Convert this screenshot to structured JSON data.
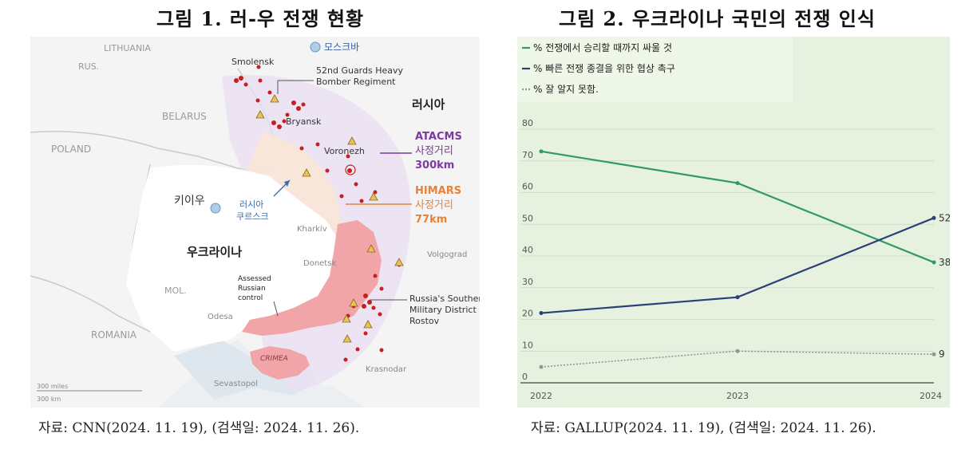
{
  "figure1": {
    "title": "그림 1. 러-우 전쟁 현황",
    "caption": "자료: CNN(2024. 11. 19), (검색일: 2024. 11. 26).",
    "map": {
      "moscow": "모스크바",
      "countries": {
        "lithuania": "LITHUANIA",
        "rus": "RUS.",
        "belarus": "BELARUS",
        "poland": "POLAND",
        "mol": "MOL.",
        "romania": "ROMANIA"
      },
      "russia": "러시아",
      "ukraine": "우크라이나",
      "kyiv": "키이우",
      "kursk": [
        "러시아",
        "쿠르스크"
      ],
      "cities": {
        "smolensk": "Smolensk",
        "bryansk": "Bryansk",
        "voronezh": "Voronezh",
        "kharkiv": "Kharkiv",
        "donetsk": "Donetsk",
        "volgograd": "Volgograd",
        "odesa": "Odesa",
        "sevastopol": "Sevastopol",
        "krasnodar": "Krasnodar",
        "crimea": "CRIMEA"
      },
      "bomber": [
        "52nd Guards Heavy",
        "Bomber Regiment"
      ],
      "assessed": [
        "Assessed",
        "Russian",
        "control"
      ],
      "hq": [
        "Russia's Southern",
        "Military District HQ,",
        "Rostov"
      ],
      "atacms": [
        "ATACMS",
        "사정거리",
        "300km"
      ],
      "himars": [
        "HIMARS",
        "사정거리",
        "77km"
      ],
      "scale": [
        "300 miles",
        "300 km"
      ],
      "colors": {
        "atacms": "#7b3aa0",
        "himars": "#e8813a",
        "control": "#f2a5a8",
        "target": "#c81e1e"
      }
    }
  },
  "figure2": {
    "title": "그림 2. 우크라이나 국민의 전쟁 인식",
    "caption": "자료: GALLUP(2024. 11. 19), (검색일: 2024. 11. 26)."
  },
  "chart_data": {
    "type": "line",
    "x": [
      "2022",
      "2023",
      "2024"
    ],
    "ylim": [
      0,
      80
    ],
    "yticks": [
      "0",
      "10",
      "20",
      "30",
      "40",
      "50",
      "60",
      "70",
      "80"
    ],
    "grid": true,
    "legend_position": "top-left",
    "series": [
      {
        "name": "% 전쟁에서 승리할 때까지 싸울 것",
        "values": [
          73,
          63,
          38
        ],
        "color": "#2e9a66",
        "style": "solid",
        "end_label": "38"
      },
      {
        "name": "% 빠른 전쟁 종결을 위한 협상 촉구",
        "values": [
          22,
          27,
          52
        ],
        "color": "#2b3f7a",
        "style": "solid",
        "end_label": "52"
      },
      {
        "name": "% 잘 알지 못함.",
        "values": [
          5,
          10,
          9
        ],
        "color": "#8e9a8e",
        "style": "dotted",
        "end_label": "9"
      }
    ]
  }
}
